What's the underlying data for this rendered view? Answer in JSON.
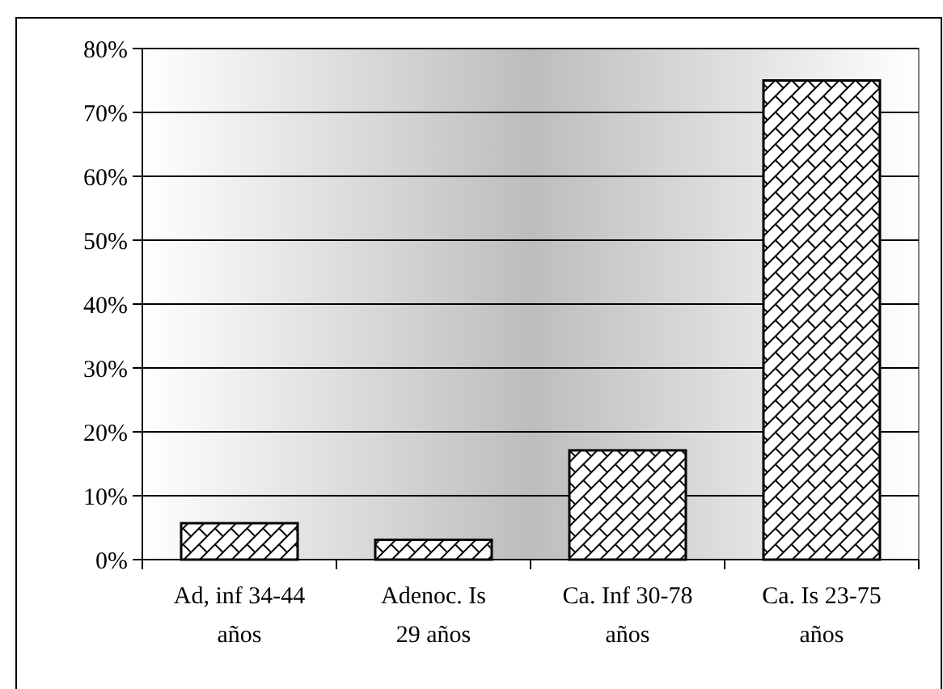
{
  "chart_data": {
    "type": "bar",
    "categories": [
      "Ad, inf 34-44 años",
      "Adenoc. Is 29 años",
      "Ca. Inf 30-78 años",
      "Ca. Is 23-75 años"
    ],
    "values": [
      5.7,
      3.1,
      17.1,
      75
    ],
    "color": "#ffffff",
    "ylim": [
      0,
      80
    ],
    "yticks": [
      {
        "value": 0,
        "label": "0%"
      },
      {
        "value": 10,
        "label": "10%"
      },
      {
        "value": 20,
        "label": "20%"
      },
      {
        "value": 30,
        "label": "30%"
      },
      {
        "value": 40,
        "label": "40%"
      },
      {
        "value": 50,
        "label": "50%"
      },
      {
        "value": 60,
        "label": "60%"
      },
      {
        "value": 70,
        "label": "70%"
      },
      {
        "value": 80,
        "label": "80%"
      }
    ],
    "grid": "y"
  }
}
